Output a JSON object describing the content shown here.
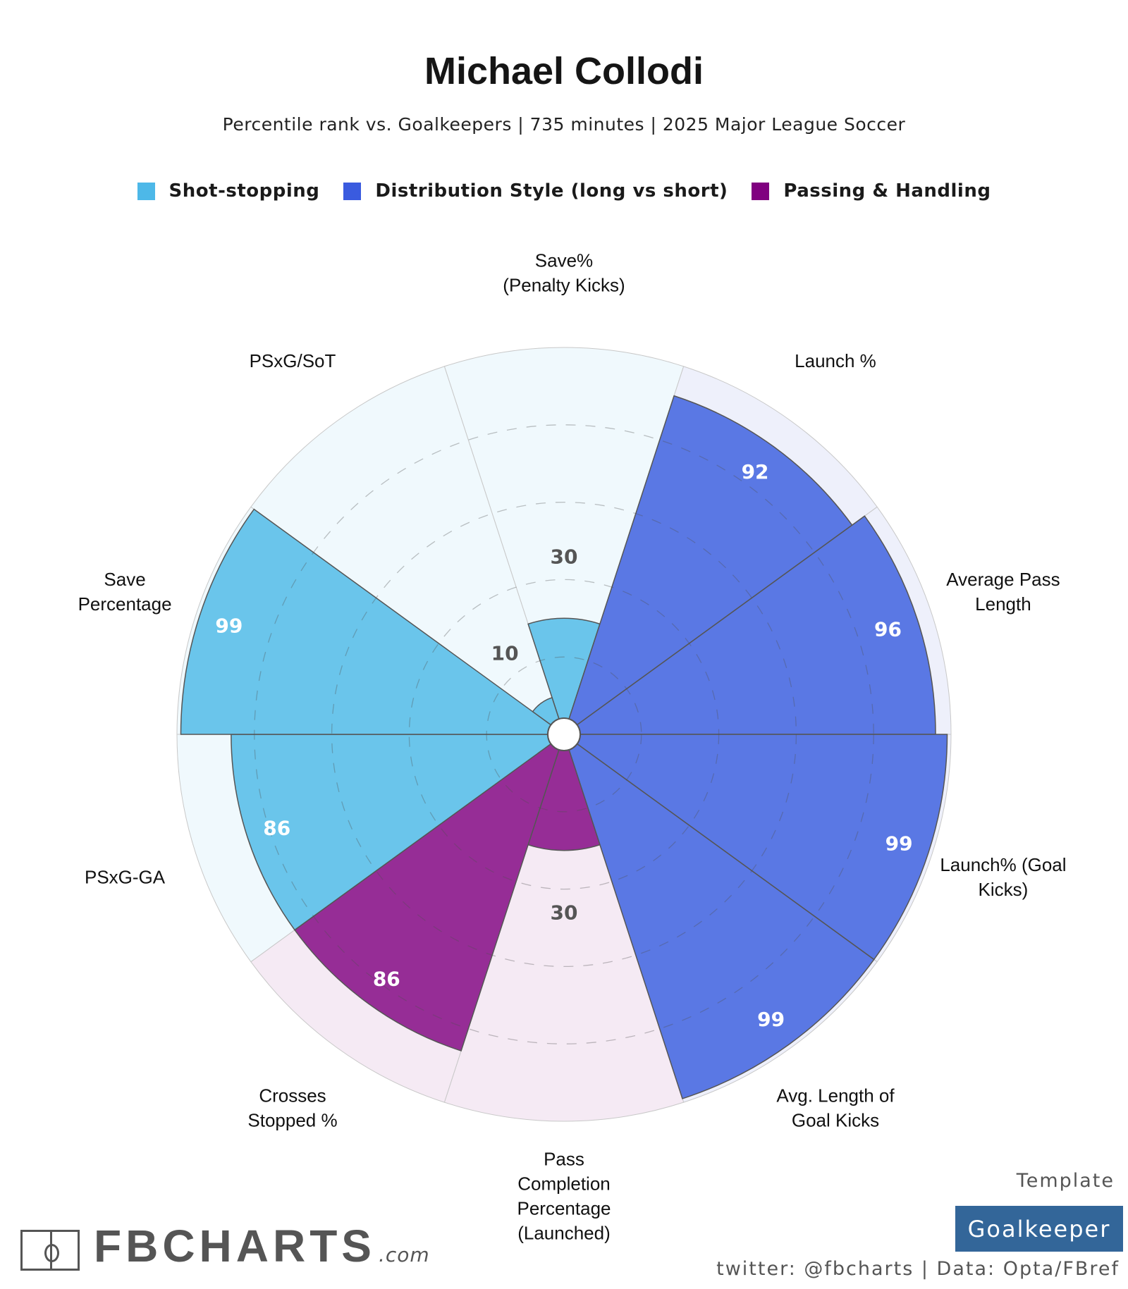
{
  "title": "Michael Collodi",
  "subtitle": "Percentile rank vs. Goalkeepers | 735 minutes | 2025 Major League Soccer",
  "legend": [
    {
      "label": "Shot-stopping",
      "color": "#4db8e8"
    },
    {
      "label": "Distribution Style (long vs short)",
      "color": "#3a5bdf"
    },
    {
      "label": "Passing & Handling",
      "color": "#800080"
    }
  ],
  "chart_data": {
    "type": "polar-bar",
    "rlim": [
      0,
      100
    ],
    "grid": [
      20,
      40,
      60,
      80
    ],
    "categories_colors": {
      "Shot-stopping": {
        "bar": "#6ac5eb",
        "bg": "#f0f9fd"
      },
      "Distribution Style (long vs short)": {
        "bar": "#5a78e4",
        "bg": "#eef0fb"
      },
      "Passing & Handling": {
        "bar": "#962d96",
        "bg": "#f5eaf4"
      }
    },
    "metrics": [
      {
        "label": [
          "Save%",
          "(Penalty Kicks)"
        ],
        "value": 30,
        "group": "Shot-stopping"
      },
      {
        "label": [
          "Launch %"
        ],
        "value": 92,
        "group": "Distribution Style (long vs short)"
      },
      {
        "label": [
          "Average Pass",
          "Length"
        ],
        "value": 96,
        "group": "Distribution Style (long vs short)"
      },
      {
        "label": [
          "Launch% (Goal",
          "Kicks)"
        ],
        "value": 99,
        "group": "Distribution Style (long vs short)"
      },
      {
        "label": [
          "Avg. Length of",
          "Goal Kicks"
        ],
        "value": 99,
        "group": "Distribution Style (long vs short)"
      },
      {
        "label": [
          "Pass",
          "Completion",
          "Percentage",
          "(Launched)"
        ],
        "value": 30,
        "group": "Passing & Handling"
      },
      {
        "label": [
          "Crosses",
          "Stopped %"
        ],
        "value": 86,
        "group": "Passing & Handling"
      },
      {
        "label": [
          "PSxG-GA"
        ],
        "value": 86,
        "group": "Shot-stopping"
      },
      {
        "label": [
          "Save",
          "Percentage"
        ],
        "value": 99,
        "group": "Shot-stopping"
      },
      {
        "label": [
          "PSxG/SoT"
        ],
        "value": 10,
        "group": "Shot-stopping"
      }
    ]
  },
  "footer": {
    "brand": "FBCHARTS",
    "brand_suffix": ".com",
    "template_label": "Template",
    "template_value": "Goalkeeper",
    "credit": "twitter: @fbcharts | Data: Opta/FBref"
  }
}
